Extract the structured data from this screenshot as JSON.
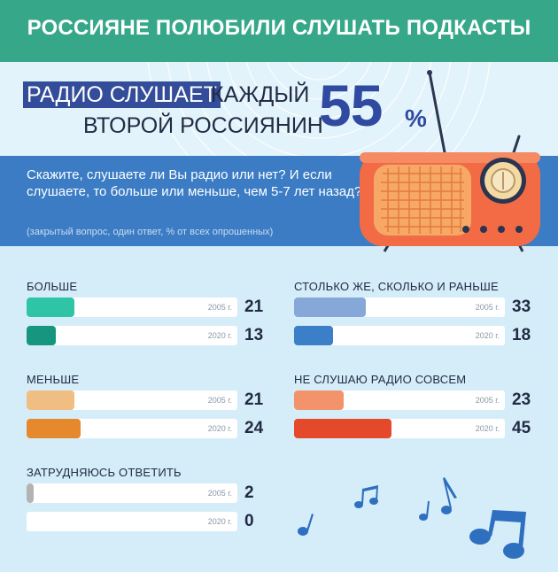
{
  "header": {
    "title": "РОССИЯНЕ ПОЛЮБИЛИ СЛУШАТЬ ПОДКАСТЫ"
  },
  "hero": {
    "highlight": "РАДИО СЛУШАЕТ",
    "rest1": "КАЖДЫЙ",
    "line2": "ВТОРОЙ РОССИЯНИН",
    "percent": "55",
    "percent_sign": "%"
  },
  "question": {
    "text": "Скажите, слушаете ли Вы радио или нет? И если слушаете, то больше или меньше, чем 5-7 лет назад?",
    "note": "(закрытый вопрос, один ответ, % от всех опрошенных)"
  },
  "colors": {
    "header_bg": "#36a788",
    "question_bg": "#3b7cc4",
    "percent": "#2f4aa0"
  },
  "chart_data": {
    "type": "bar",
    "orientation": "horizontal",
    "xlim": [
      0,
      100
    ],
    "groups": [
      {
        "title": "БОЛЬШЕ",
        "rows": [
          {
            "year": "2005 г.",
            "value": 21,
            "color": "#30c4a6"
          },
          {
            "year": "2020 г.",
            "value": 13,
            "color": "#16977d"
          }
        ]
      },
      {
        "title": "СТОЛЬКО ЖЕ, СКОЛЬКО И РАНЬШЕ",
        "rows": [
          {
            "year": "2005 г.",
            "value": 33,
            "color": "#86a8d8"
          },
          {
            "year": "2020 г.",
            "value": 18,
            "color": "#3a7fc8"
          }
        ]
      },
      {
        "title": "МЕНЬШЕ",
        "rows": [
          {
            "year": "2005 г.",
            "value": 21,
            "color": "#f0be82"
          },
          {
            "year": "2020 г.",
            "value": 24,
            "color": "#e5892c"
          }
        ]
      },
      {
        "title": "НЕ СЛУШАЮ РАДИО СОВСЕМ",
        "rows": [
          {
            "year": "2005 г.",
            "value": 23,
            "color": "#f3936b"
          },
          {
            "year": "2020 г.",
            "value": 45,
            "color": "#e5492c"
          }
        ]
      },
      {
        "title": "ЗАТРУДНЯЮСЬ ОТВЕТИТЬ",
        "rows": [
          {
            "year": "2005 г.",
            "value": 2,
            "color": "#b3b3b3"
          },
          {
            "year": "2020 г.",
            "value": 0,
            "color": "#b3b3b3"
          }
        ]
      }
    ]
  }
}
